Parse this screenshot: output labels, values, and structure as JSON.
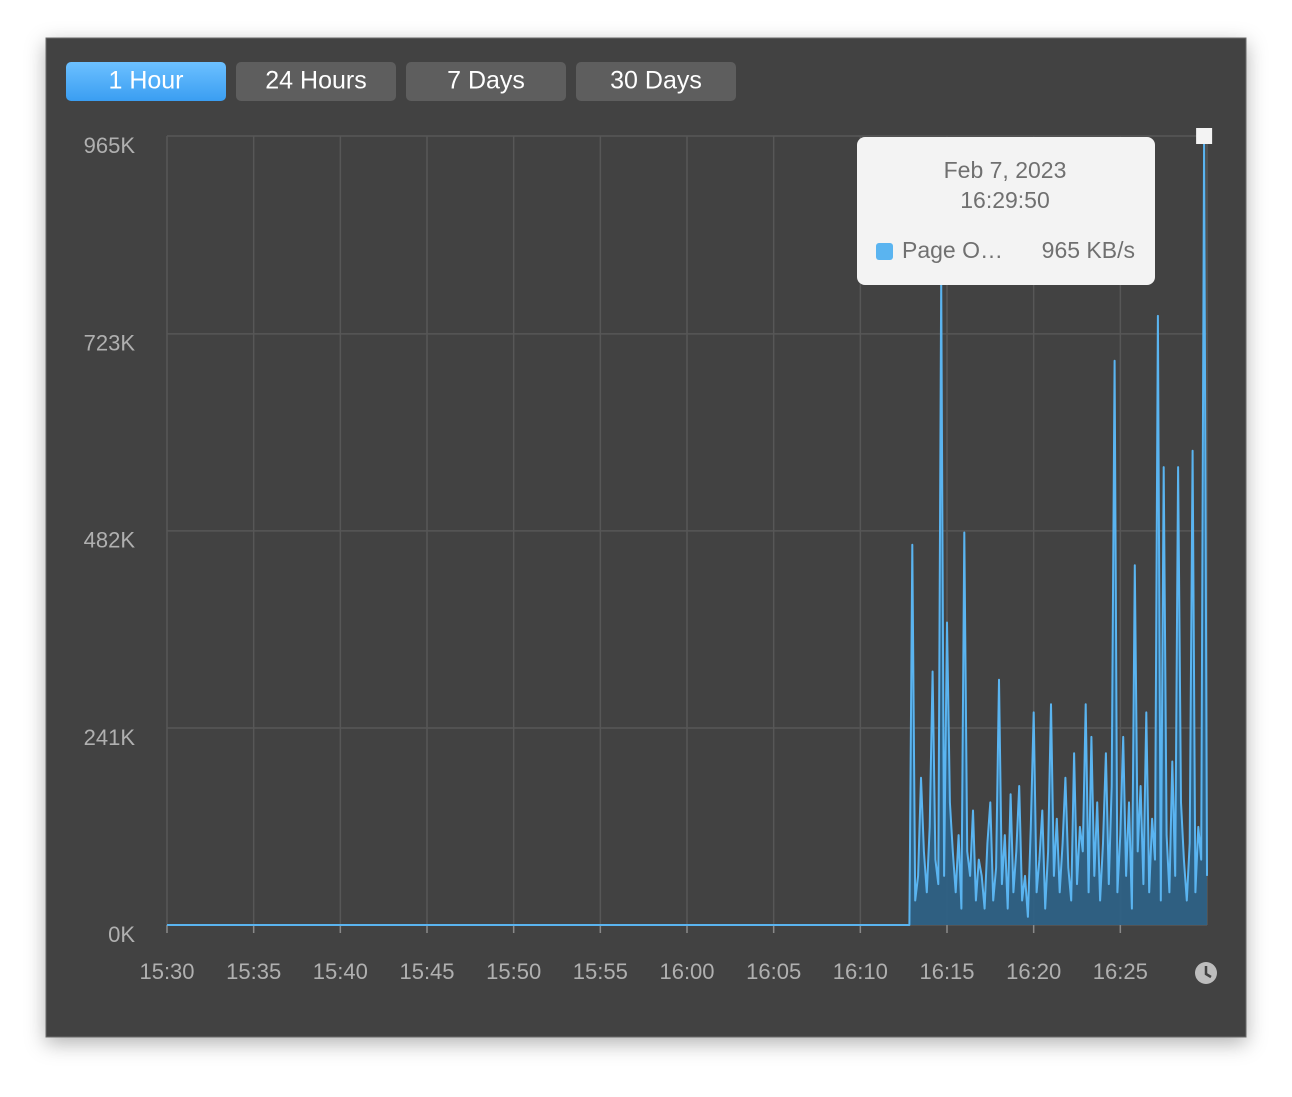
{
  "toolbar": {
    "buttons": [
      "1 Hour",
      "24 Hours",
      "7 Days",
      "30 Days"
    ],
    "selected": 0
  },
  "chart_data": {
    "type": "area",
    "series": [
      {
        "name": "Page O…",
        "color": "#5ab4f0",
        "fill": "#2d6388",
        "values": [
          0,
          0,
          465,
          30,
          60,
          180,
          90,
          40,
          120,
          310,
          80,
          50,
          790,
          60,
          370,
          150,
          90,
          40,
          110,
          20,
          480,
          90,
          60,
          140,
          30,
          80,
          60,
          20,
          100,
          150,
          30,
          70,
          300,
          50,
          110,
          20,
          160,
          40,
          90,
          170,
          30,
          60,
          10,
          120,
          260,
          40,
          80,
          140,
          20,
          90,
          270,
          60,
          130,
          40,
          100,
          180,
          70,
          30,
          210,
          50,
          120,
          90,
          270,
          40,
          230,
          60,
          150,
          30,
          100,
          210,
          50,
          170,
          690,
          40,
          110,
          230,
          60,
          150,
          20,
          440,
          90,
          170,
          50,
          260,
          40,
          130,
          80,
          745,
          30,
          560,
          110,
          40,
          200,
          60,
          560,
          150,
          80,
          30,
          100,
          580,
          40,
          120,
          80,
          965,
          60
        ]
      }
    ],
    "x": [
      "15:30:00",
      "16:12:50",
      "16:13:00",
      "16:13:10",
      "16:13:20",
      "16:13:30",
      "16:13:40",
      "16:13:50",
      "16:14:00",
      "16:14:10",
      "16:14:20",
      "16:14:30",
      "16:14:40",
      "16:14:50",
      "16:15:00",
      "16:15:10",
      "16:15:20",
      "16:15:30",
      "16:15:40",
      "16:15:50",
      "16:16:00",
      "16:16:10",
      "16:16:20",
      "16:16:30",
      "16:16:40",
      "16:16:50",
      "16:17:00",
      "16:17:10",
      "16:17:20",
      "16:17:30",
      "16:17:40",
      "16:17:50",
      "16:18:00",
      "16:18:10",
      "16:18:20",
      "16:18:30",
      "16:18:40",
      "16:18:50",
      "16:19:00",
      "16:19:10",
      "16:19:20",
      "16:19:30",
      "16:19:40",
      "16:19:50",
      "16:20:00",
      "16:20:10",
      "16:20:20",
      "16:20:30",
      "16:20:40",
      "16:20:50",
      "16:21:00",
      "16:21:10",
      "16:21:20",
      "16:21:30",
      "16:21:40",
      "16:21:50",
      "16:22:00",
      "16:22:10",
      "16:22:20",
      "16:22:30",
      "16:22:40",
      "16:22:50",
      "16:23:00",
      "16:23:10",
      "16:23:20",
      "16:23:30",
      "16:23:40",
      "16:23:50",
      "16:24:00",
      "16:24:10",
      "16:24:20",
      "16:24:30",
      "16:24:40",
      "16:24:50",
      "16:25:00",
      "16:25:10",
      "16:25:20",
      "16:25:30",
      "16:25:40",
      "16:25:50",
      "16:26:00",
      "16:26:10",
      "16:26:20",
      "16:26:30",
      "16:26:40",
      "16:26:50",
      "16:27:00",
      "16:27:10",
      "16:27:20",
      "16:27:30",
      "16:27:40",
      "16:27:50",
      "16:28:00",
      "16:28:10",
      "16:28:20",
      "16:28:30",
      "16:28:40",
      "16:28:50",
      "16:29:00",
      "16:29:10",
      "16:29:20",
      "16:29:30",
      "16:29:40",
      "16:29:50",
      "16:30:00"
    ],
    "xlim": [
      "15:30:00",
      "16:30:00"
    ],
    "xticks": [
      {
        "value": "15:30:00",
        "label": "15:30"
      },
      {
        "value": "15:35:00",
        "label": "15:35"
      },
      {
        "value": "15:40:00",
        "label": "15:40"
      },
      {
        "value": "15:45:00",
        "label": "15:45"
      },
      {
        "value": "15:50:00",
        "label": "15:50"
      },
      {
        "value": "15:55:00",
        "label": "15:55"
      },
      {
        "value": "16:00:00",
        "label": "16:00"
      },
      {
        "value": "16:05:00",
        "label": "16:05"
      },
      {
        "value": "16:10:00",
        "label": "16:10"
      },
      {
        "value": "16:15:00",
        "label": "16:15"
      },
      {
        "value": "16:20:00",
        "label": "16:20"
      },
      {
        "value": "16:25:00",
        "label": "16:25"
      }
    ],
    "ylim": [
      0,
      965
    ],
    "yticks": [
      {
        "value": 0,
        "label": "0K"
      },
      {
        "value": 241,
        "label": "241K"
      },
      {
        "value": 482,
        "label": "482K"
      },
      {
        "value": 723,
        "label": "723K"
      },
      {
        "value": 965,
        "label": "965K"
      }
    ],
    "grid": true,
    "tooltip": {
      "date": "Feb 7, 2023",
      "time": "16:29:50",
      "value": 965,
      "value_label": "965 KB/s"
    }
  }
}
